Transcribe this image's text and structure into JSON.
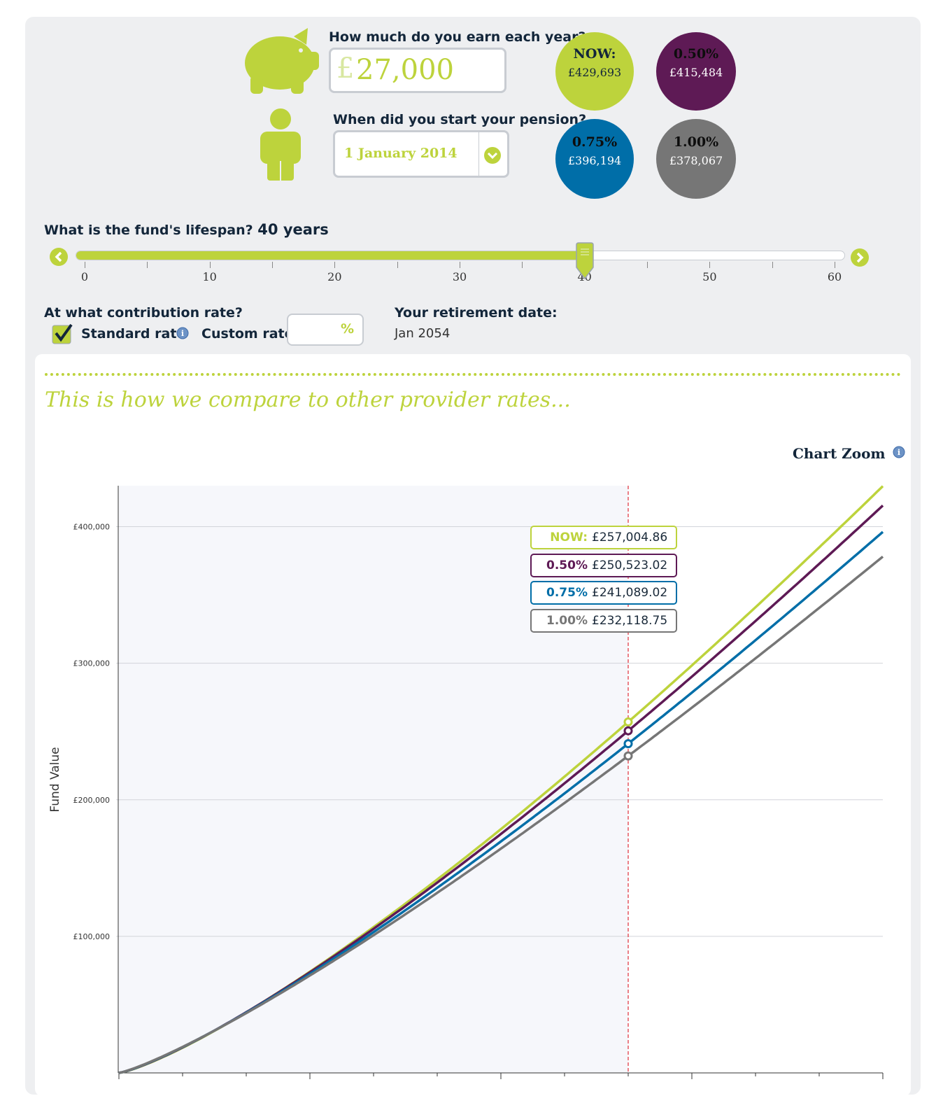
{
  "earnings": {
    "question": "How much do you earn each year?",
    "currency_symbol": "£",
    "value": "27,000"
  },
  "start": {
    "question": "When did you start your pension?",
    "value": "1 January 2014"
  },
  "summary": [
    {
      "label": "NOW:",
      "value": "£429,693",
      "color": "#bdd33c"
    },
    {
      "label": "0.50%",
      "value": "£415,484",
      "color": "#5e1a55"
    },
    {
      "label": "0.75%",
      "value": "£396,194",
      "color": "#006ea8"
    },
    {
      "label": "1.00%",
      "value": "£378,067",
      "color": "#767676"
    }
  ],
  "lifespan": {
    "question": "What is the fund's lifespan?",
    "value_text": "40 years",
    "value": 40,
    "min": 0,
    "max": 60,
    "tick_labels": [
      "0",
      "10",
      "20",
      "30",
      "40",
      "50",
      "60"
    ]
  },
  "contribution": {
    "question": "At what contribution rate?",
    "standard_label": "Standard rate",
    "standard_checked": true,
    "custom_label": "Custom rate:",
    "custom_placeholder": "%"
  },
  "retirement": {
    "label": "Your retirement date:",
    "value": "Jan 2054"
  },
  "compare": {
    "heading": "This is how we compare to other provider rates...",
    "zoom_label": "Chart Zoom"
  },
  "colors": {
    "accent": "#bdd33c",
    "navy": "#13263a",
    "purple": "#5e1a55",
    "blue": "#006ea8",
    "grey": "#767676"
  },
  "chart_data": {
    "type": "line",
    "ylabel": "Fund Value",
    "ylim": [
      0,
      430000
    ],
    "xlim": [
      0,
      60
    ],
    "ytick_labels": [
      "£100,000",
      "£200,000",
      "£300,000",
      "£400,000"
    ],
    "yticks": [
      100000,
      200000,
      300000,
      400000
    ],
    "grid": true,
    "marker_x": 40,
    "series": [
      {
        "name": "NOW:",
        "color": "#bdd33c",
        "final": 429693,
        "at_marker": 257004.86,
        "tooltip": "£257,004.86"
      },
      {
        "name": "0.50%",
        "color": "#5e1a55",
        "final": 415484,
        "at_marker": 250523.02,
        "tooltip": "£250,523.02"
      },
      {
        "name": "0.75%",
        "color": "#006ea8",
        "final": 396194,
        "at_marker": 241089.02,
        "tooltip": "£241,089.02"
      },
      {
        "name": "1.00%",
        "color": "#767676",
        "final": 378067,
        "at_marker": 232118.75,
        "tooltip": "£232,118.75"
      }
    ]
  }
}
